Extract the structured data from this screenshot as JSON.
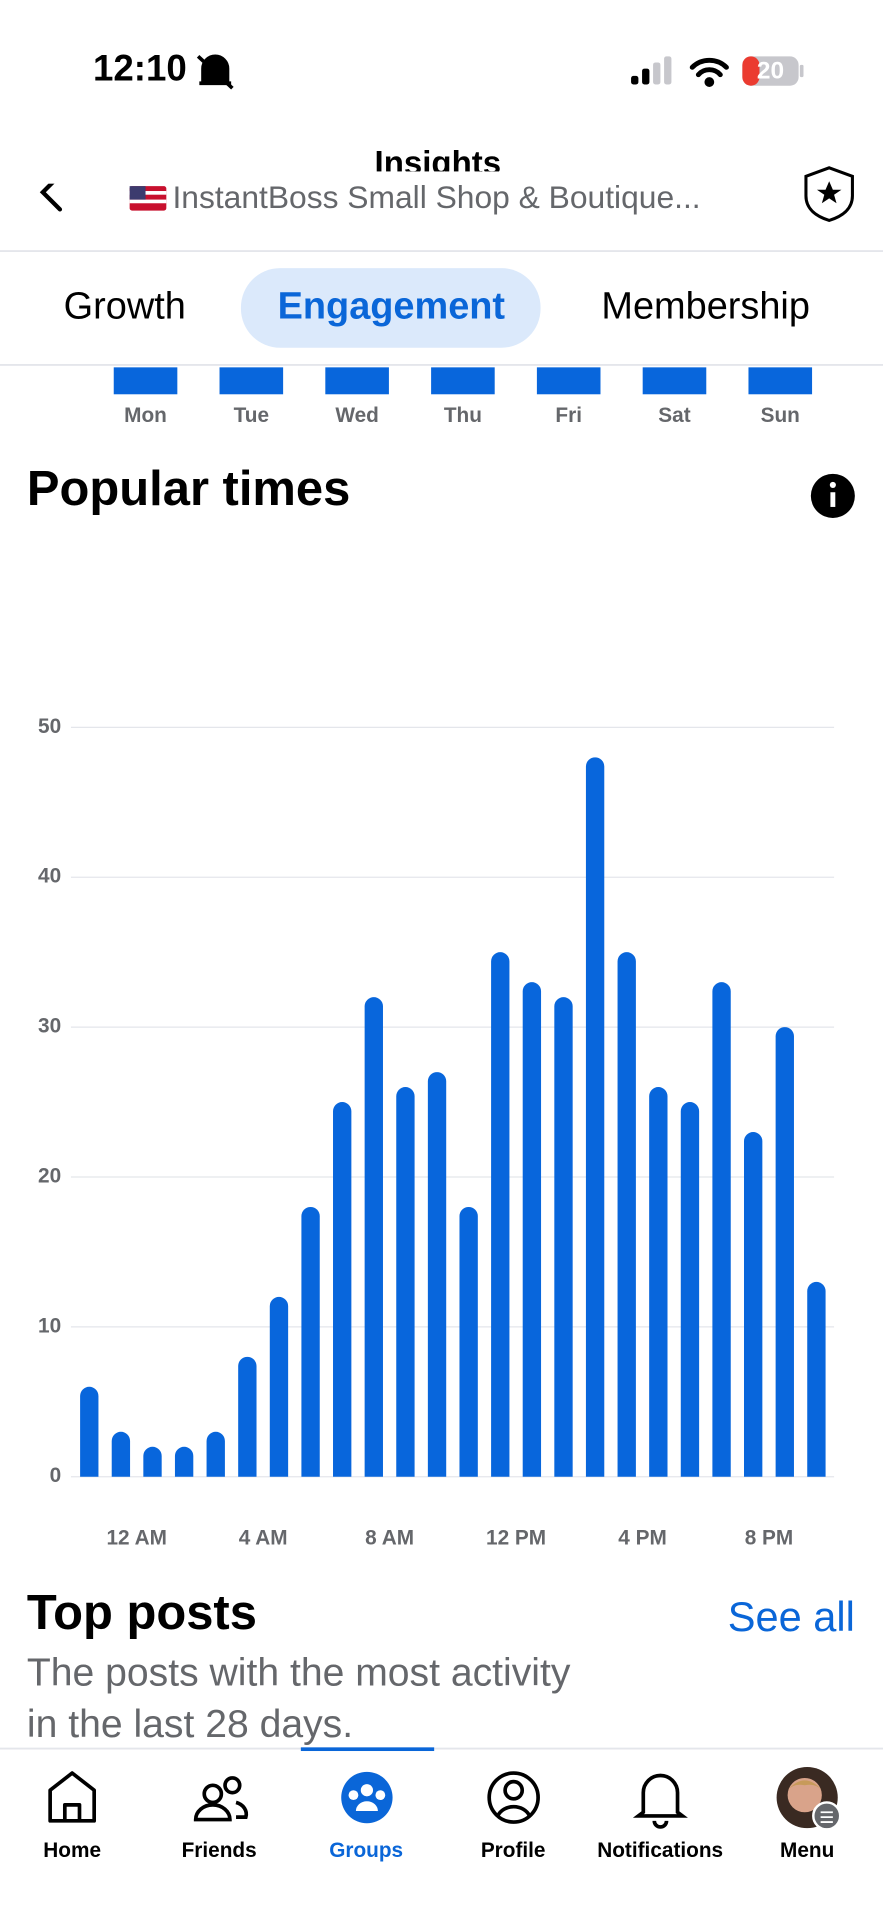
{
  "status_bar": {
    "time": "12:10",
    "battery": "20"
  },
  "header": {
    "title": "Insights",
    "subtitle": "InstantBoss Small Shop & Boutique..."
  },
  "tabs": [
    "Growth",
    "Engagement",
    "Membership"
  ],
  "week_days": [
    "Mon",
    "Tue",
    "Wed",
    "Thu",
    "Fri",
    "Sat",
    "Sun"
  ],
  "section_title": "Popular times",
  "chart_data": {
    "type": "bar",
    "color": "#0866dc",
    "categories": [
      null,
      "12 AM",
      null,
      null,
      null,
      "4 AM",
      null,
      null,
      null,
      "8 AM",
      null,
      null,
      null,
      "12 PM",
      null,
      null,
      null,
      "4 PM",
      null,
      null,
      null,
      "8 PM",
      null,
      null
    ],
    "values": [
      6,
      3,
      2,
      2,
      3,
      8,
      12,
      18,
      25,
      32,
      26,
      27,
      18,
      35,
      33,
      32,
      48,
      35,
      26,
      25,
      33,
      23,
      30,
      13
    ],
    "ylim": [
      0,
      50
    ],
    "yticks": [
      0,
      10,
      20,
      30,
      40,
      50
    ],
    "grid": true
  },
  "top_posts": {
    "title": "Top posts",
    "see_all": "See all",
    "description": [
      "The posts with the most activity",
      "in the last 28 days."
    ]
  },
  "nav": [
    "Home",
    "Friends",
    "Groups",
    "Profile",
    "Notifications",
    "Menu"
  ]
}
